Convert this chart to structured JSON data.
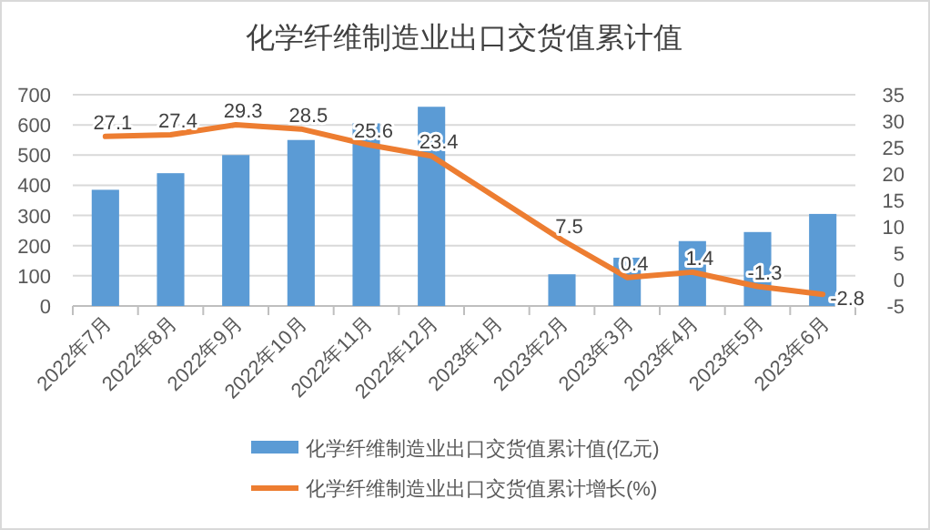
{
  "chart_data": {
    "type": "bar",
    "title": "化学纤维制造业出口交货值累计值",
    "categories": [
      "2022年7月",
      "2022年8月",
      "2022年9月",
      "2022年10月",
      "2022年11月",
      "2022年12月",
      "2023年1月",
      "2023年2月",
      "2023年3月",
      "2023年4月",
      "2023年5月",
      "2023年6月"
    ],
    "series": [
      {
        "name": "化学纤维制造业出口交货值累计值(亿元)",
        "color": "#5b9bd5",
        "values": [
          385,
          440,
          500,
          550,
          605,
          660,
          null,
          105,
          160,
          215,
          245,
          305
        ]
      },
      {
        "name": "化学纤维制造业出口交货值累计增长(%)",
        "type": "line",
        "axis": "y2",
        "color": "#ed7d31",
        "values": [
          27.1,
          27.4,
          29.3,
          28.5,
          25.6,
          23.4,
          null,
          7.5,
          0.4,
          1.4,
          -1.3,
          -2.8
        ],
        "value_labels": [
          "27.1",
          "27.4",
          "29.3",
          "28.5",
          "25.6",
          "23.4",
          null,
          "7.5",
          "0.4",
          "1.4",
          "-1.3",
          "-2.8"
        ]
      }
    ],
    "ylim": [
      0,
      700
    ],
    "yticks": [
      0,
      100,
      200,
      300,
      400,
      500,
      600,
      700
    ],
    "y2lim": [
      -5,
      35
    ],
    "y2ticks": [
      -5,
      0,
      5,
      10,
      15,
      20,
      25,
      30,
      35
    ],
    "grid": "y",
    "legend": "bottom",
    "marker": "none",
    "line_style": "solid"
  }
}
